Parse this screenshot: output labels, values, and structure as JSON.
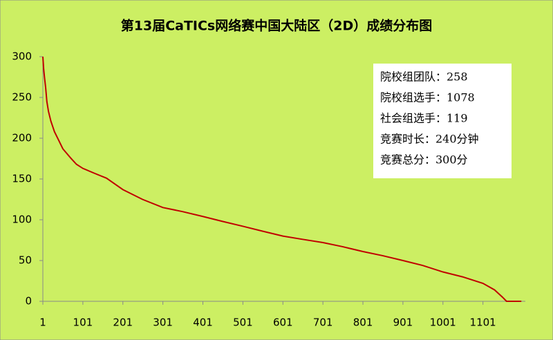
{
  "chart_data": {
    "type": "line",
    "title": "第13届CaTICs网络赛中国大陆区（2D）成绩分布图",
    "annotations": [
      "院校组团队：258",
      "院校组选手：1078",
      "社会组选手：119",
      "竞赛时长：240分钟",
      "竞赛总分：300分"
    ],
    "x": [
      1,
      3,
      5,
      8,
      11,
      15,
      21,
      30,
      40,
      51,
      70,
      85,
      101,
      130,
      160,
      201,
      250,
      301,
      350,
      401,
      450,
      501,
      550,
      601,
      650,
      701,
      750,
      801,
      850,
      901,
      950,
      1001,
      1050,
      1101,
      1130,
      1150,
      1160,
      1197
    ],
    "values": [
      300,
      285,
      275,
      262,
      245,
      233,
      221,
      208,
      198,
      187,
      176,
      168,
      163,
      157,
      151,
      137,
      125,
      115,
      110,
      104,
      98,
      92,
      86,
      80,
      76,
      72,
      67,
      61,
      56,
      50,
      44,
      36,
      30,
      22,
      14,
      5,
      0,
      0
    ],
    "color": "#c00000",
    "xlim": [
      1,
      1207
    ],
    "xticks": [
      1,
      101,
      201,
      301,
      401,
      501,
      601,
      701,
      801,
      901,
      1001,
      1101
    ],
    "ylim": [
      0,
      300
    ],
    "yticks": [
      0,
      50,
      100,
      150,
      200,
      250,
      300
    ],
    "grid": false
  }
}
